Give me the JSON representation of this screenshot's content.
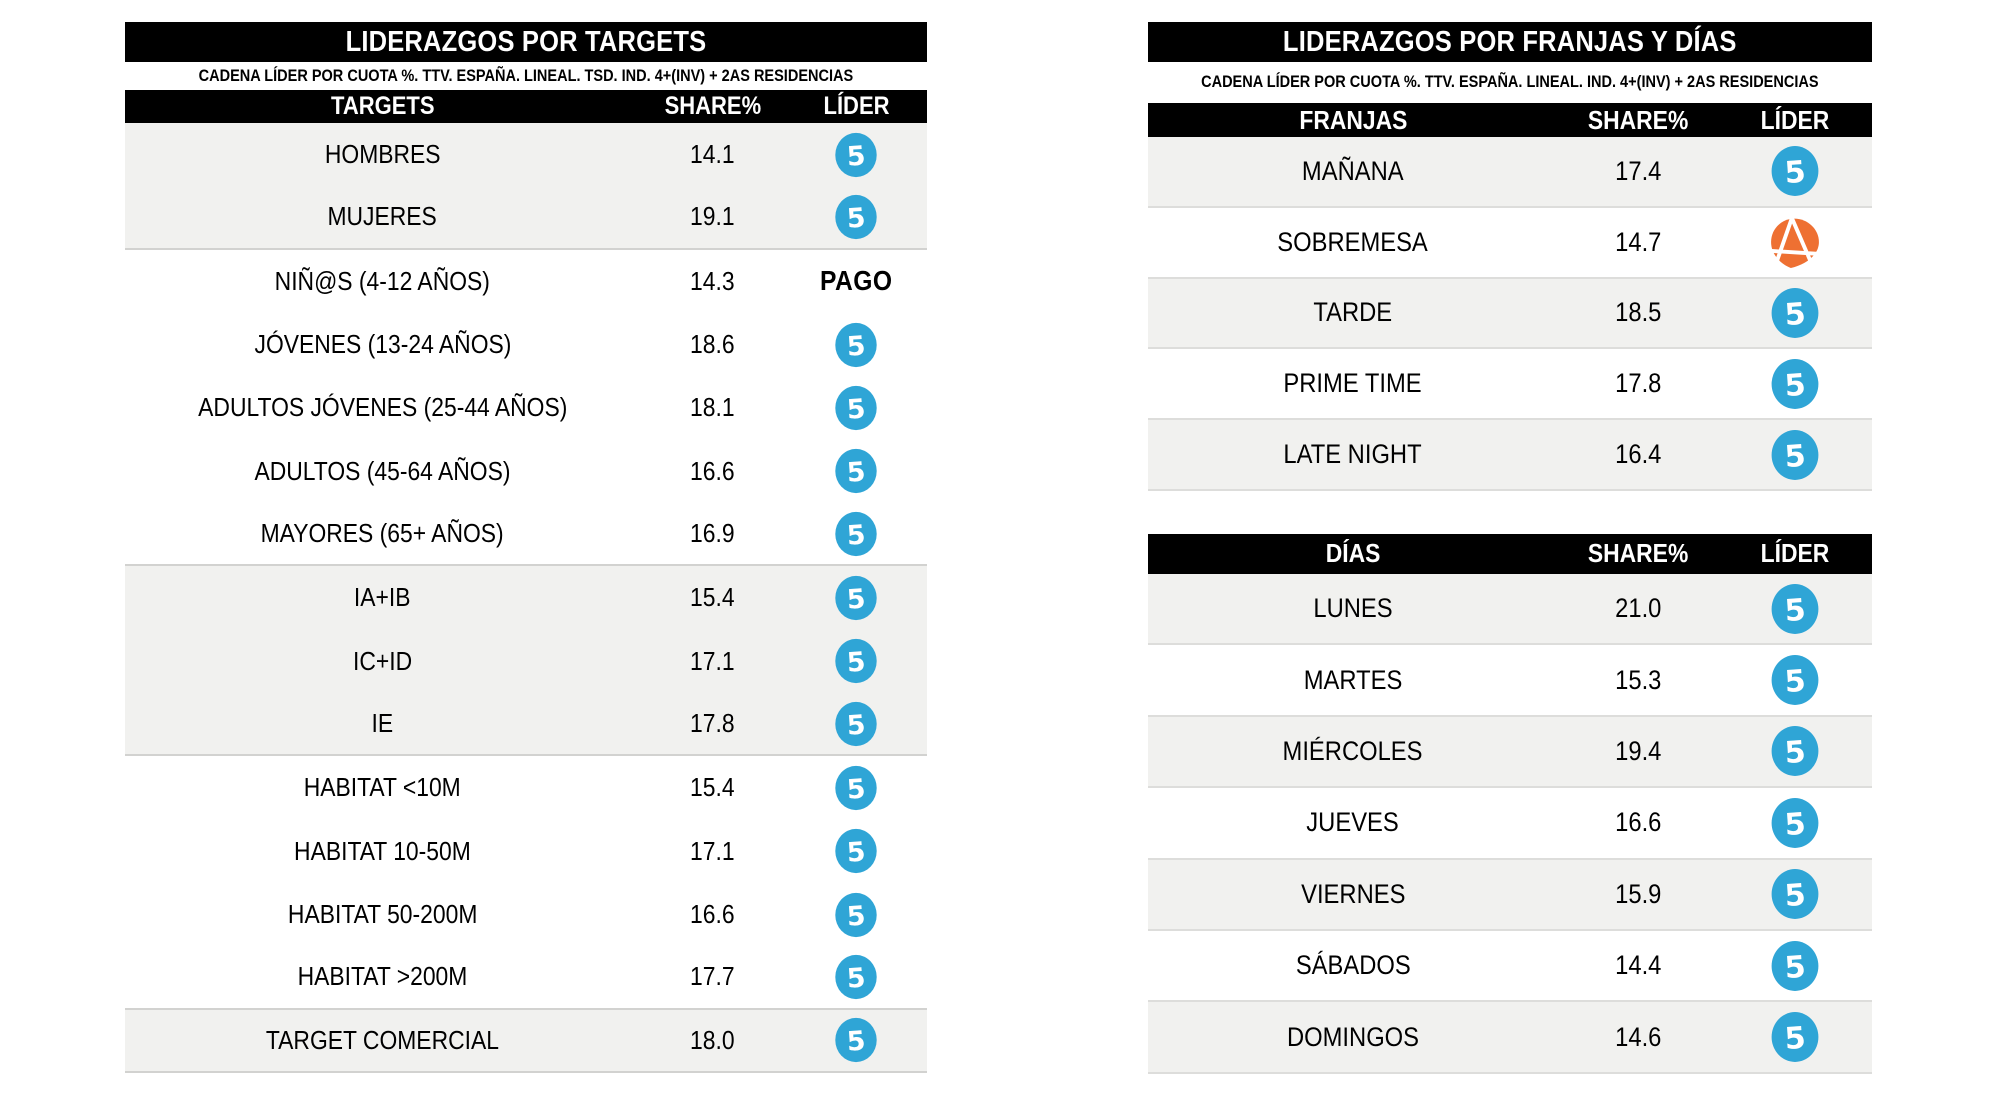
{
  "colors": {
    "bar_black": "#000000",
    "row_gray": "#F1F1EF",
    "separator_gray": "#D2D2D0",
    "telecinco_blue": "#2FA5D6",
    "antena3_orange": "#EE7032"
  },
  "leaders": {
    "telecinco": {
      "icon": "telecinco-logo",
      "color": "#2FA5D6"
    },
    "antena3": {
      "icon": "antena3-logo",
      "color": "#EE7032"
    },
    "pago": {
      "label": "PAGO"
    }
  },
  "left_table": {
    "title": "LIDERAZGOS POR TARGETS",
    "subtitle": "CADENA LÍDER POR CUOTA %. TTV. ESPAÑA. LINEAL. TSD. IND. 4+(INV) + 2AS RESIDENCIAS",
    "columns": [
      "TARGETS",
      "SHARE%",
      "LÍDER"
    ],
    "rows": [
      {
        "label": "HOMBRES",
        "share": "14.1",
        "leader": "telecinco",
        "shaded": true,
        "group_end": false
      },
      {
        "label": "MUJERES",
        "share": "19.1",
        "leader": "telecinco",
        "shaded": true,
        "group_end": true
      },
      {
        "label": "NIÑ@S (4-12 AÑOS)",
        "share": "14.3",
        "leader": "pago",
        "shaded": false,
        "group_end": false
      },
      {
        "label": "JÓVENES (13-24 AÑOS)",
        "share": "18.6",
        "leader": "telecinco",
        "shaded": false,
        "group_end": false
      },
      {
        "label": "ADULTOS JÓVENES (25-44 AÑOS)",
        "share": "18.1",
        "leader": "telecinco",
        "shaded": false,
        "group_end": false
      },
      {
        "label": "ADULTOS (45-64 AÑOS)",
        "share": "16.6",
        "leader": "telecinco",
        "shaded": false,
        "group_end": false
      },
      {
        "label": "MAYORES (65+ AÑOS)",
        "share": "16.9",
        "leader": "telecinco",
        "shaded": false,
        "group_end": true
      },
      {
        "label": "IA+IB",
        "share": "15.4",
        "leader": "telecinco",
        "shaded": true,
        "group_end": false
      },
      {
        "label": "IC+ID",
        "share": "17.1",
        "leader": "telecinco",
        "shaded": true,
        "group_end": false
      },
      {
        "label": "IE",
        "share": "17.8",
        "leader": "telecinco",
        "shaded": true,
        "group_end": true
      },
      {
        "label": "HABITAT <10M",
        "share": "15.4",
        "leader": "telecinco",
        "shaded": false,
        "group_end": false
      },
      {
        "label": "HABITAT 10-50M",
        "share": "17.1",
        "leader": "telecinco",
        "shaded": false,
        "group_end": false
      },
      {
        "label": "HABITAT 50-200M",
        "share": "16.6",
        "leader": "telecinco",
        "shaded": false,
        "group_end": false
      },
      {
        "label": "HABITAT >200M",
        "share": "17.7",
        "leader": "telecinco",
        "shaded": false,
        "group_end": true
      },
      {
        "label": "TARGET COMERCIAL",
        "share": "18.0",
        "leader": "telecinco",
        "shaded": true,
        "group_end": true
      }
    ]
  },
  "right_tables": {
    "title": "LIDERAZGOS POR FRANJAS Y DÍAS",
    "subtitle": "CADENA LÍDER POR CUOTA %. TTV. ESPAÑA. LINEAL. IND. 4+(INV) + 2AS RESIDENCIAS",
    "franjas": {
      "columns": [
        "FRANJAS",
        "SHARE%",
        "LÍDER"
      ],
      "rows": [
        {
          "label": "MAÑANA",
          "share": "17.4",
          "leader": "telecinco",
          "shaded": true,
          "group_end": false
        },
        {
          "label": "SOBREMESA",
          "share": "14.7",
          "leader": "antena3",
          "shaded": false,
          "group_end": false
        },
        {
          "label": "TARDE",
          "share": "18.5",
          "leader": "telecinco",
          "shaded": true,
          "group_end": false
        },
        {
          "label": "PRIME TIME",
          "share": "17.8",
          "leader": "telecinco",
          "shaded": false,
          "group_end": false
        },
        {
          "label": "LATE NIGHT",
          "share": "16.4",
          "leader": "telecinco",
          "shaded": true,
          "group_end": false
        }
      ]
    },
    "dias": {
      "columns": [
        "DÍAS",
        "SHARE%",
        "LÍDER"
      ],
      "rows": [
        {
          "label": "LUNES",
          "share": "21.0",
          "leader": "telecinco",
          "shaded": true,
          "group_end": false
        },
        {
          "label": "MARTES",
          "share": "15.3",
          "leader": "telecinco",
          "shaded": false,
          "group_end": false
        },
        {
          "label": "MIÉRCOLES",
          "share": "19.4",
          "leader": "telecinco",
          "shaded": true,
          "group_end": false
        },
        {
          "label": "JUEVES",
          "share": "16.6",
          "leader": "telecinco",
          "shaded": false,
          "group_end": false
        },
        {
          "label": "VIERNES",
          "share": "15.9",
          "leader": "telecinco",
          "shaded": true,
          "group_end": false
        },
        {
          "label": "SÁBADOS",
          "share": "14.4",
          "leader": "telecinco",
          "shaded": false,
          "group_end": false
        },
        {
          "label": "DOMINGOS",
          "share": "14.6",
          "leader": "telecinco",
          "shaded": true,
          "group_end": false
        }
      ]
    }
  }
}
